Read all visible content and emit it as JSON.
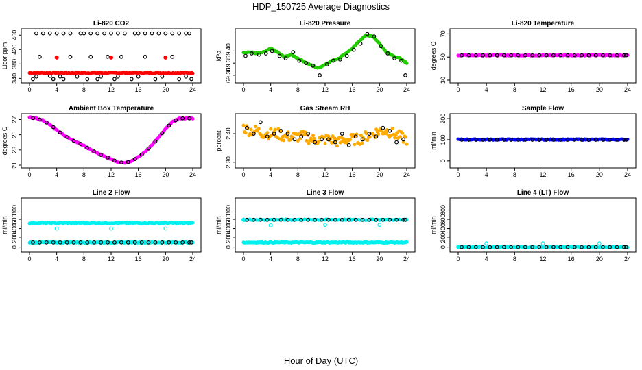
{
  "figure": {
    "title": "HDP_150725  Average Diagnostics",
    "xlabel": "Hour of Day (UTC)",
    "colors": {
      "black": "#000000",
      "red": "#ff0000",
      "green": "#22cc00",
      "magenta": "#ff00ff",
      "orange": "#ffaa00",
      "blue": "#0000ff",
      "cyan": "#00f0f0"
    }
  },
  "chart_data": [
    {
      "type": "scatter",
      "title": "Li-820 CO2",
      "ylabel": "Licor ppm",
      "xlim": [
        0,
        24
      ],
      "ylim": [
        335,
        470
      ],
      "xticks": [
        0,
        4,
        8,
        12,
        16,
        20,
        24
      ],
      "yticks": [
        340,
        380,
        420,
        460
      ],
      "series": [
        {
          "name": "hourly",
          "color": "#000000",
          "marker": "open",
          "x": [
            1,
            2,
            3,
            4,
            5,
            6,
            7.5,
            8,
            9,
            10,
            11,
            12,
            13,
            14,
            15.5,
            16,
            17,
            18,
            19,
            20,
            21,
            22,
            23,
            23.5
          ],
          "y": [
            465,
            465,
            465,
            465,
            465,
            465,
            465,
            465,
            465,
            465,
            465,
            465,
            465,
            465,
            465,
            465,
            465,
            465,
            465,
            465,
            465,
            465,
            465,
            465
          ]
        },
        {
          "name": "hourly-low",
          "color": "#000000",
          "marker": "open",
          "x": [
            0.5,
            1,
            1.5,
            3,
            3.5,
            4.5,
            5,
            6,
            7,
            8.5,
            9,
            10,
            10.5,
            11.5,
            12.5,
            13,
            13.5,
            15,
            16,
            17,
            18.5,
            19.5,
            21,
            22,
            23,
            23.8
          ],
          "y": [
            338,
            345,
            400,
            347,
            338,
            345,
            338,
            400,
            345,
            338,
            400,
            338,
            345,
            400,
            338,
            345,
            400,
            338,
            345,
            400,
            338,
            345,
            400,
            338,
            345,
            338
          ]
        },
        {
          "name": "averages",
          "color": "#ff0000",
          "marker": "filled",
          "x": [
            0,
            24
          ],
          "y": [
            355,
            355
          ]
        },
        {
          "name": "hourly-outliers",
          "color": "#ff0000",
          "marker": "filled",
          "x": [
            4,
            12,
            20
          ],
          "y": [
            398,
            398,
            398
          ]
        }
      ]
    },
    {
      "type": "scatter",
      "title": "Li-820 Pressure",
      "ylabel": "kPa",
      "xlim": [
        0,
        24
      ],
      "ylim": [
        69.28,
        69.48
      ],
      "xticks": [
        0,
        4,
        8,
        12,
        16,
        20,
        24
      ],
      "yticks": [
        69.3,
        69.35,
        69.4
      ],
      "series": [
        {
          "name": "averages",
          "color": "#22cc00",
          "marker": "filled",
          "x": [
            0,
            1,
            2,
            3,
            4,
            5,
            6,
            7,
            8,
            9,
            10,
            11,
            12,
            13,
            14,
            15,
            16,
            17,
            18,
            19,
            20,
            21,
            22,
            23,
            24
          ],
          "y": [
            69.395,
            69.395,
            69.39,
            69.395,
            69.41,
            69.395,
            69.375,
            69.385,
            69.37,
            69.355,
            69.34,
            69.33,
            69.345,
            69.36,
            69.37,
            69.39,
            69.41,
            69.44,
            69.465,
            69.46,
            69.43,
            69.395,
            69.38,
            69.37,
            69.35
          ]
        },
        {
          "name": "hourly",
          "color": "#000000",
          "marker": "open",
          "x": [
            0.3,
            1.2,
            2.3,
            3.3,
            4.2,
            5.3,
            6.2,
            7.3,
            8.2,
            9.2,
            10.2,
            11.2,
            12.3,
            13.2,
            14.2,
            15.2,
            16.2,
            17.2,
            18.2,
            19.2,
            20.2,
            21.2,
            22.2,
            23.2,
            23.8
          ],
          "y": [
            69.38,
            69.39,
            69.385,
            69.39,
            69.4,
            69.38,
            69.37,
            69.395,
            69.36,
            69.35,
            69.34,
            69.3,
            69.345,
            69.36,
            69.365,
            69.38,
            69.405,
            69.43,
            69.47,
            69.46,
            69.42,
            69.39,
            69.37,
            69.36,
            69.3
          ]
        }
      ]
    },
    {
      "type": "scatter",
      "title": "Li-820 Temperature",
      "ylabel": "degrees C",
      "xlim": [
        0,
        24
      ],
      "ylim": [
        30,
        72
      ],
      "xticks": [
        0,
        4,
        8,
        12,
        16,
        20,
        24
      ],
      "yticks": [
        30,
        50,
        70
      ],
      "series": [
        {
          "name": "averages",
          "color": "#ff00ff",
          "marker": "filled",
          "x": [
            0,
            24
          ],
          "y": [
            51.5,
            51.5
          ]
        },
        {
          "name": "hourly",
          "color": "#000000",
          "marker": "open",
          "x": [
            0,
            24
          ],
          "y": [
            51.5,
            51.5
          ]
        }
      ]
    },
    {
      "type": "scatter",
      "title": "Ambient Box Temperature",
      "ylabel": "degrees C",
      "xlim": [
        0,
        24
      ],
      "ylim": [
        21,
        27.4
      ],
      "xticks": [
        0,
        4,
        8,
        12,
        16,
        20,
        24
      ],
      "yticks": [
        21,
        23,
        25,
        27
      ],
      "series": [
        {
          "name": "averages",
          "color": "#ff00ff",
          "marker": "filled",
          "x": [
            0,
            1,
            2,
            3,
            4,
            5,
            6,
            7,
            8,
            9,
            10,
            11,
            12,
            13,
            14,
            15,
            16,
            17,
            18,
            19,
            20,
            21,
            22,
            23,
            24
          ],
          "y": [
            27.3,
            27.15,
            26.9,
            26.35,
            25.6,
            25.0,
            24.4,
            24.0,
            23.55,
            23.0,
            22.55,
            22.15,
            21.8,
            21.4,
            21.3,
            21.55,
            22.05,
            22.75,
            23.65,
            24.65,
            25.75,
            26.65,
            27.15,
            27.15,
            27.15
          ]
        },
        {
          "name": "hourly",
          "color": "#000000",
          "marker": "open",
          "x": [
            0.5,
            1.5,
            2.5,
            3.5,
            4.5,
            5.5,
            6.5,
            7.5,
            8.5,
            9.5,
            10.5,
            11.5,
            12.5,
            13.5,
            14.5,
            15.5,
            16.5,
            17.5,
            18.5,
            19.5,
            20.5,
            21.5,
            22.5,
            23.5
          ],
          "y": [
            27.2,
            27.0,
            26.6,
            26.0,
            25.3,
            24.7,
            24.2,
            23.8,
            23.3,
            22.8,
            22.35,
            22.0,
            21.6,
            21.35,
            21.4,
            21.8,
            22.4,
            23.2,
            24.1,
            25.2,
            26.2,
            26.9,
            27.15,
            27.15
          ]
        }
      ]
    },
    {
      "type": "scatter",
      "title": "Gas Stream RH",
      "ylabel": "percent",
      "xlim": [
        0,
        24
      ],
      "ylim": [
        2.29,
        2.46
      ],
      "xticks": [
        0,
        4,
        8,
        12,
        16,
        20,
        24
      ],
      "yticks": [
        2.3,
        2.4
      ],
      "series": [
        {
          "name": "averages",
          "color": "#ffaa00",
          "marker": "filled",
          "x": [
            0,
            1,
            2,
            3,
            4,
            5,
            6,
            7,
            8,
            9,
            10,
            11,
            12,
            13,
            14,
            15,
            16,
            17,
            18,
            19,
            20,
            21,
            22,
            23,
            24
          ],
          "y": [
            2.42,
            2.41,
            2.41,
            2.4,
            2.4,
            2.4,
            2.39,
            2.39,
            2.39,
            2.39,
            2.38,
            2.38,
            2.38,
            2.38,
            2.37,
            2.38,
            2.38,
            2.38,
            2.39,
            2.4,
            2.41,
            2.41,
            2.4,
            2.39,
            2.38
          ]
        },
        {
          "name": "hourly",
          "color": "#000000",
          "marker": "open",
          "x": [
            0.5,
            1.5,
            2.5,
            3.5,
            4.5,
            5.5,
            6.5,
            7.5,
            8.5,
            9.5,
            10.5,
            11.5,
            12.5,
            13.5,
            14.5,
            15.5,
            16.5,
            17.5,
            18.5,
            19.5,
            20.5,
            21.5,
            22.5,
            23.5
          ],
          "y": [
            2.42,
            2.4,
            2.44,
            2.39,
            2.4,
            2.41,
            2.4,
            2.38,
            2.39,
            2.4,
            2.37,
            2.38,
            2.38,
            2.37,
            2.4,
            2.36,
            2.39,
            2.38,
            2.4,
            2.39,
            2.42,
            2.41,
            2.37,
            2.38
          ]
        }
      ]
    },
    {
      "type": "scatter",
      "title": "Sample Flow",
      "ylabel": "ml/min",
      "xlim": [
        0,
        24
      ],
      "ylim": [
        -20,
        210
      ],
      "xticks": [
        0,
        4,
        8,
        12,
        16,
        20,
        24
      ],
      "yticks": [
        0,
        100,
        200
      ],
      "series": [
        {
          "name": "averages",
          "color": "#0000ff",
          "marker": "filled",
          "x": [
            0,
            24
          ],
          "y": [
            101,
            101
          ]
        },
        {
          "name": "hourly",
          "color": "#000000",
          "marker": "open",
          "x": [
            0,
            24
          ],
          "y": [
            100,
            100
          ]
        }
      ]
    },
    {
      "type": "scatter",
      "title": "Line 2 Flow",
      "ylabel": "ml/min",
      "xlim": [
        0,
        24
      ],
      "ylim": [
        -50,
        1000
      ],
      "xticks": [
        0,
        4,
        8,
        12,
        16,
        20,
        24
      ],
      "yticks": [
        0,
        200,
        400,
        600,
        800
      ],
      "series": [
        {
          "name": "averages-high",
          "color": "#00f0f0",
          "marker": "filled",
          "x": [
            0,
            24
          ],
          "y": [
            520,
            520
          ]
        },
        {
          "name": "averages-low",
          "color": "#00f0f0",
          "marker": "filled",
          "x": [
            0,
            24
          ],
          "y": [
            100,
            100
          ]
        },
        {
          "name": "hourly",
          "color": "#000000",
          "marker": "open",
          "x": [
            0,
            24
          ],
          "y": [
            100,
            100
          ]
        },
        {
          "name": "hourly-dips",
          "color": "#00f0f0",
          "marker": "open",
          "x": [
            4,
            12,
            20
          ],
          "y": [
            400,
            400,
            400
          ]
        }
      ]
    },
    {
      "type": "scatter",
      "title": "Line 3 Flow",
      "ylabel": "ml/min",
      "xlim": [
        0,
        24
      ],
      "ylim": [
        -50,
        1000
      ],
      "xticks": [
        0,
        4,
        8,
        12,
        16,
        20,
        24
      ],
      "yticks": [
        0,
        200,
        400,
        600,
        800
      ],
      "series": [
        {
          "name": "averages-high",
          "color": "#00f0f0",
          "marker": "filled",
          "x": [
            0,
            24
          ],
          "y": [
            590,
            590
          ]
        },
        {
          "name": "averages-low",
          "color": "#00f0f0",
          "marker": "filled",
          "x": [
            0,
            24
          ],
          "y": [
            100,
            100
          ]
        },
        {
          "name": "hourly",
          "color": "#000000",
          "marker": "open",
          "x": [
            0,
            24
          ],
          "y": [
            590,
            590
          ]
        },
        {
          "name": "hourly-dips",
          "color": "#00f0f0",
          "marker": "open",
          "x": [
            0,
            4,
            12,
            20
          ],
          "y": [
            590,
            470,
            480,
            480
          ]
        }
      ]
    },
    {
      "type": "scatter",
      "title": "Line 4 (LT) Flow",
      "ylabel": "ml/min",
      "xlim": [
        0,
        24
      ],
      "ylim": [
        -50,
        1000
      ],
      "xticks": [
        0,
        4,
        8,
        12,
        16,
        20,
        24
      ],
      "yticks": [
        0,
        200,
        400,
        600,
        800
      ],
      "series": [
        {
          "name": "averages",
          "color": "#00f0f0",
          "marker": "filled",
          "x": [
            0,
            24
          ],
          "y": [
            0,
            0
          ]
        },
        {
          "name": "hourly",
          "color": "#000000",
          "marker": "open",
          "x": [
            0,
            24
          ],
          "y": [
            0,
            0
          ]
        },
        {
          "name": "hourly-spikes",
          "color": "#00f0f0",
          "marker": "open",
          "x": [
            0,
            4,
            12,
            20
          ],
          "y": [
            0,
            80,
            80,
            80
          ]
        }
      ]
    }
  ]
}
